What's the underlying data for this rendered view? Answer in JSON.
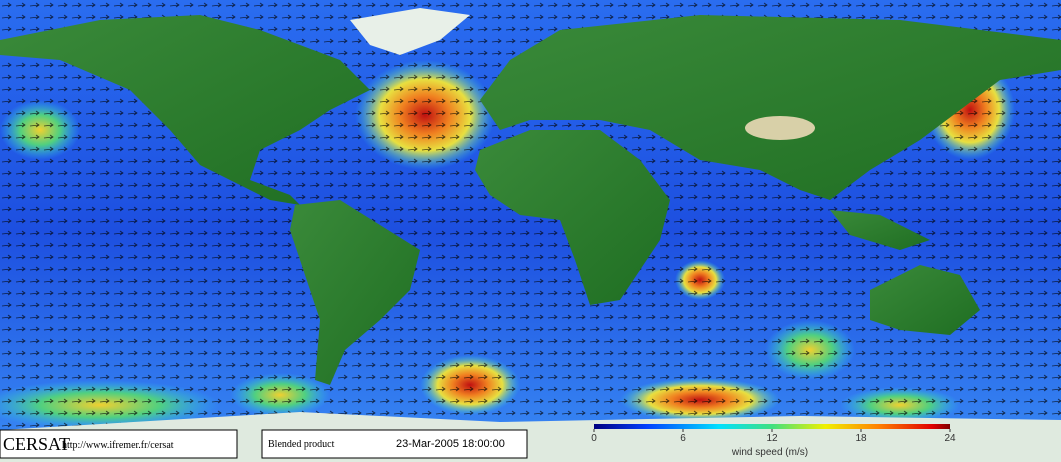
{
  "footer": {
    "logo": "CERSAT",
    "url": "http://www.ifremer.fr/cersat",
    "product": "Blended product",
    "timestamp": "23-Mar-2005 18:00:00"
  },
  "colorbar": {
    "label": "wind speed (m/s)",
    "lim": [
      0,
      24
    ],
    "ticks": [
      0,
      6,
      12,
      18,
      24
    ]
  }
}
